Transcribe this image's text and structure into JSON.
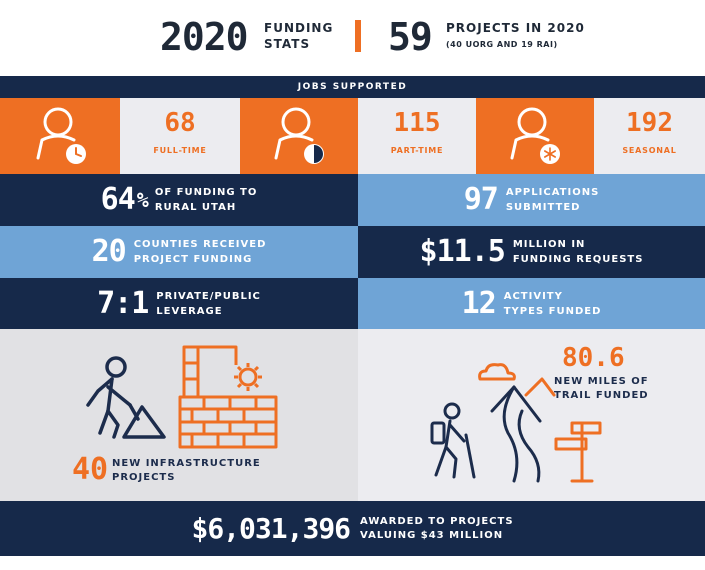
{
  "header": {
    "year": "2020",
    "year_label_1": "Funding",
    "year_label_2": "Stats",
    "projects_count": "59",
    "projects_label": "Projects In 2020",
    "projects_sub": "(40 UORG and 19 RAI)"
  },
  "jobs": {
    "title": "Jobs Supported",
    "items": [
      {
        "value": "68",
        "label": "Full-Time",
        "icon": "person-clock-icon"
      },
      {
        "value": "115",
        "label": "Part-Time",
        "icon": "person-halfcircle-icon"
      },
      {
        "value": "192",
        "label": "Seasonal",
        "icon": "person-snowflake-icon"
      }
    ]
  },
  "stats": [
    {
      "value": "64",
      "unit": "%",
      "line1": "of funding to",
      "line2": "rural Utah"
    },
    {
      "value": "97",
      "line1": "Applications",
      "line2": "Submitted"
    },
    {
      "value": "20",
      "line1": "Counties Received",
      "line2": "Project Funding"
    },
    {
      "value": "$11.5",
      "line1": "Million in",
      "line2": "Funding Requests"
    },
    {
      "value": "7:1",
      "line1": "Private/Public",
      "line2": "Leverage"
    },
    {
      "value": "12",
      "line1": "Activity",
      "line2": "Types Funded"
    }
  ],
  "infrastructure": {
    "value": "40",
    "line1": "New Infrastructure",
    "line2": "Projects"
  },
  "trails": {
    "value": "80.6",
    "line1": "New Miles of",
    "line2": "Trail Funded"
  },
  "footer": {
    "value": "$6,031,396",
    "line1": "Awarded to Projects",
    "line2": "Valuing $43 Million"
  },
  "colors": {
    "navy": "#16294a",
    "light_blue": "#6fa4d6",
    "orange": "#ee6f23",
    "light_gray": "#ececf0"
  }
}
